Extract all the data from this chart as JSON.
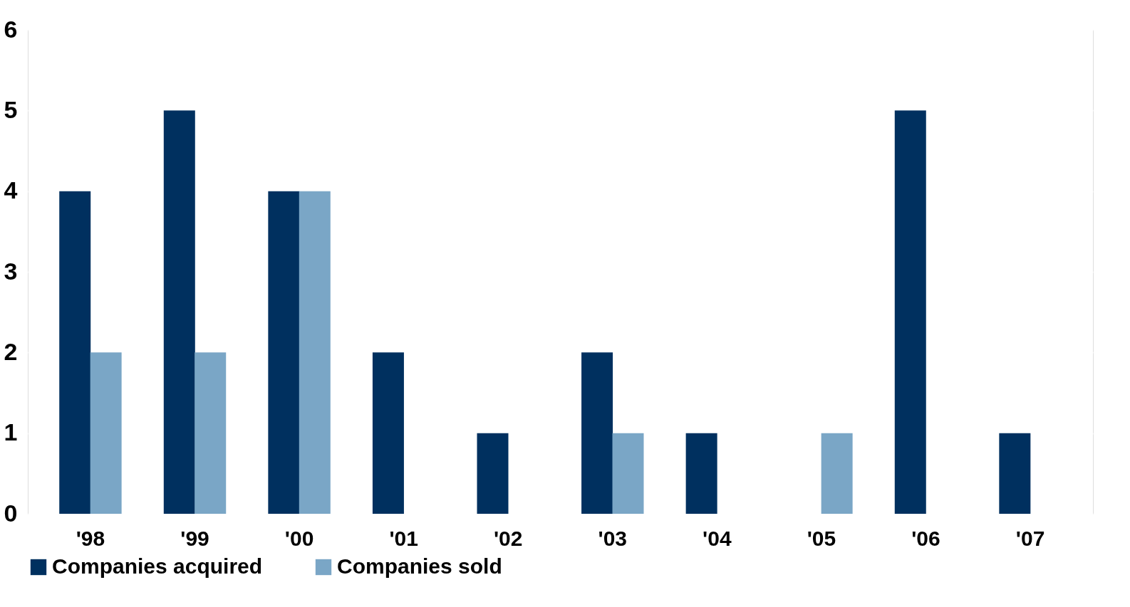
{
  "chart_data": {
    "type": "bar",
    "categories": [
      "'98",
      "'99",
      "'00",
      "'01",
      "'02",
      "'03",
      "'04",
      "'05",
      "'06",
      "'07"
    ],
    "series": [
      {
        "name": "Companies acquired",
        "color": "#00305f",
        "values": [
          4,
          5,
          4,
          2,
          1,
          2,
          1,
          0,
          5,
          1
        ]
      },
      {
        "name": "Companies sold",
        "color": "#7aa6c6",
        "values": [
          2,
          2,
          4,
          0,
          0,
          1,
          0,
          1,
          0,
          0
        ]
      }
    ],
    "ylim": [
      0,
      6
    ],
    "yticks": [
      0,
      1,
      2,
      3,
      4,
      5,
      6
    ],
    "grid": "y",
    "legend": "bottom left"
  }
}
